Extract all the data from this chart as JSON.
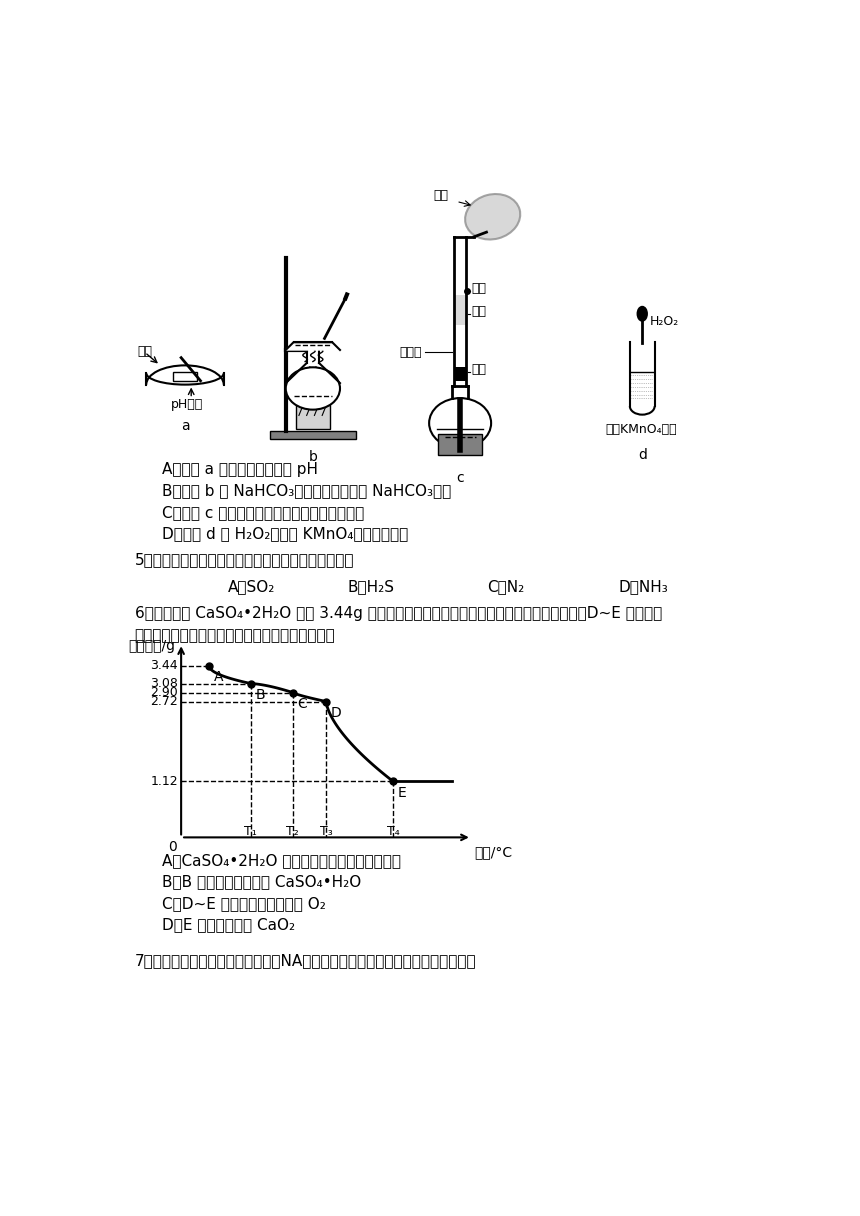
{
  "bg_color": "#ffffff",
  "text_color": "#000000",
  "q4_options": [
    "A．装置 a 可用于测定氯水的 pH",
    "B．装置 b 从 NaHCO₃溶液中获得纯净的 NaHCO₃固体",
    "C．装置 c 加热一段时间后气球鼓起，溴水褪色",
    "D．装置 d 中 H₂O₂可氧化 KMnO₄溶液使其褪色"
  ],
  "q5_text": "5．下列气体中，既能用浓硫酸又能用碱石灰干燥的是",
  "q5_options": [
    "A．SO₂",
    "B．H₂S",
    "C．N₂",
    "D．NH₃"
  ],
  "q6_text1": "6．取纯净的 CaSO₄•2H₂O 固体 3.44g 进行加热，测得固体质量随温度的变化情况如图所示。D~E 阶段反应",
  "q6_text2": "生成的气体能使品红溶液褪色。下列说法错误的是",
  "graph_ylabel": "固体质量/g",
  "graph_xlabel": "温度/°C",
  "q6_options": [
    "A．CaSO₄•2H₂O 受热时分三个阶段失去结晶水",
    "B．B 点固体的化学式是 CaSO₄•H₂O",
    "C．D~E 阶段的气体产物还有 O₂",
    "D．E 点固体物质为 CaO₂"
  ],
  "q7_text": "7．氮在自然界中的循环如图所示。NA为阿伏加德罗常数的值，下列说法错误的是"
}
